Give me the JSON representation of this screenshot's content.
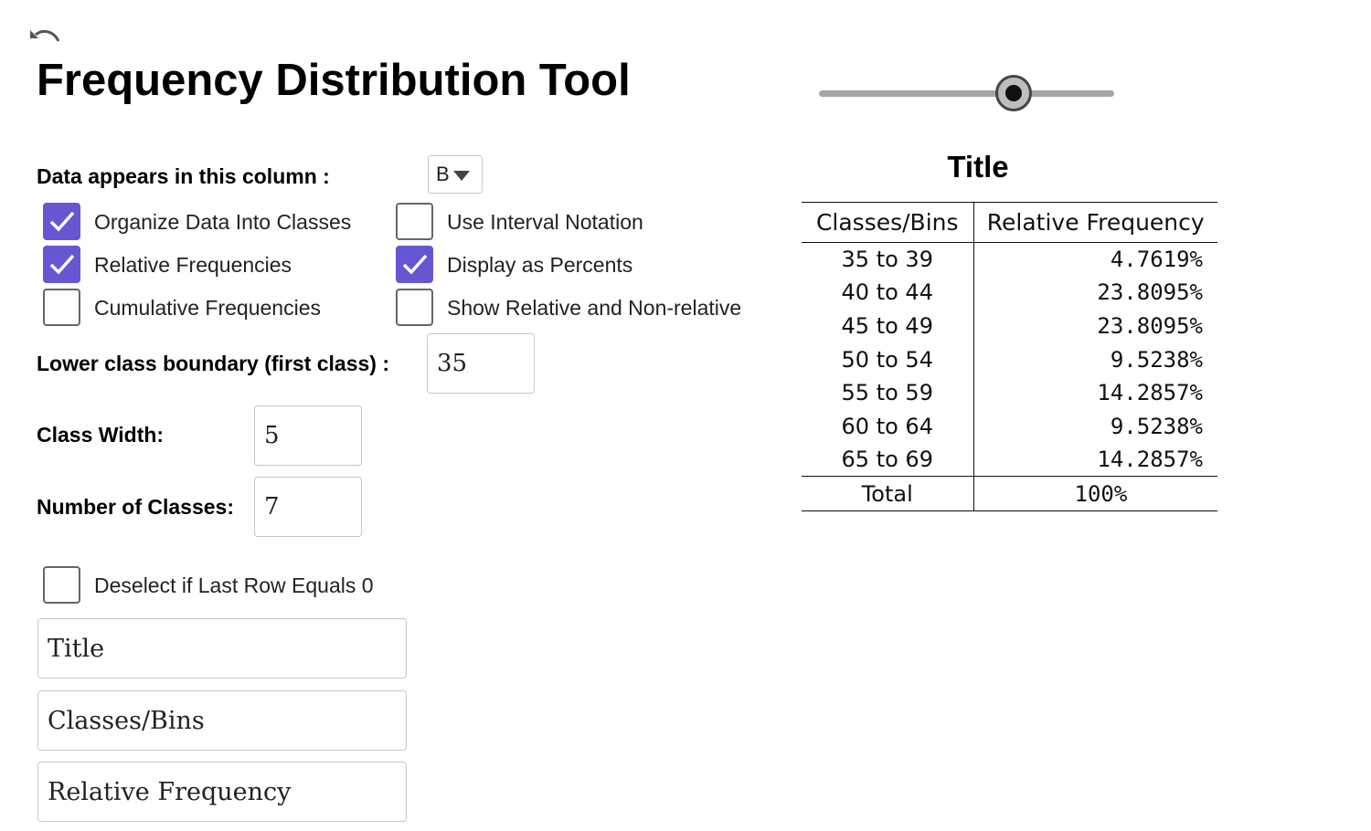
{
  "header": {
    "title": "Frequency Distribution Tool",
    "undo_icon": "undo-icon"
  },
  "slider": {
    "value_fraction": 0.66
  },
  "column": {
    "label": "Data appears in this column :",
    "value": "B"
  },
  "options": {
    "organize": {
      "label": "Organize Data Into Classes",
      "checked": true
    },
    "relative": {
      "label": "Relative Frequencies",
      "checked": true
    },
    "cumulative": {
      "label": "Cumulative Frequencies",
      "checked": false
    },
    "interval": {
      "label": "Use Interval Notation",
      "checked": false
    },
    "percents": {
      "label": "Display as Percents",
      "checked": true
    },
    "show_both": {
      "label": "Show Relative and Non-relative",
      "checked": false
    },
    "deselect_zero": {
      "label": "Deselect if Last Row Equals 0",
      "checked": false
    }
  },
  "lower_boundary": {
    "label": "Lower class boundary (first class) :",
    "value": "35"
  },
  "class_width": {
    "label": "Class Width:",
    "value": "5"
  },
  "num_classes": {
    "label": "Number of Classes:",
    "value": "7"
  },
  "text_fields": {
    "title": "Title",
    "classes_header": "Classes/Bins",
    "frequency_header": "Relative Frequency"
  },
  "table": {
    "title": "Title",
    "headers": [
      "Classes/Bins",
      "Relative Frequency"
    ],
    "rows": [
      [
        "35 to 39",
        "4.7619%"
      ],
      [
        "40 to 44",
        "23.8095%"
      ],
      [
        "45 to 49",
        "23.8095%"
      ],
      [
        "50 to 54",
        "9.5238%"
      ],
      [
        "55 to 59",
        "14.2857%"
      ],
      [
        "60 to 64",
        "9.5238%"
      ],
      [
        "65 to 69",
        "14.2857%"
      ]
    ],
    "total": [
      "Total",
      "100%"
    ]
  },
  "colors": {
    "checkbox_checked": "#6557d2"
  }
}
